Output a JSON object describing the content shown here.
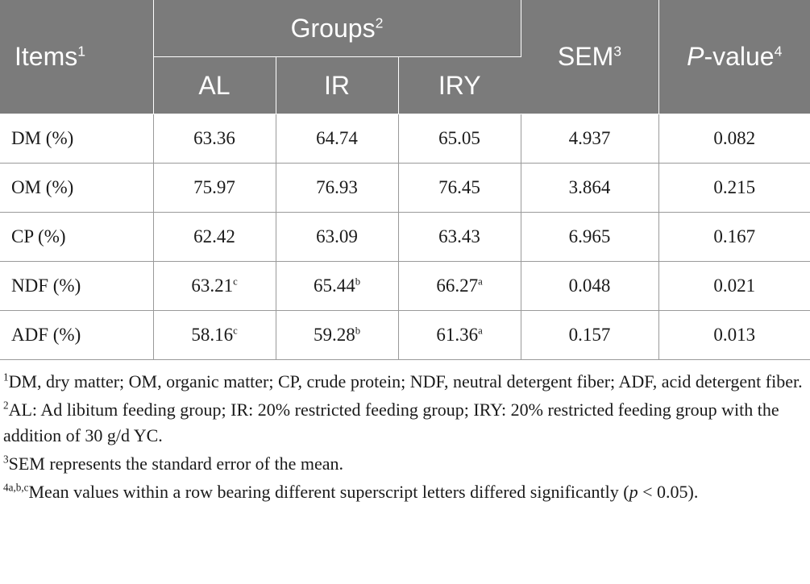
{
  "header": {
    "items": "Items",
    "items_sup": "1",
    "groups": "Groups",
    "groups_sup": "2",
    "sem": "SEM",
    "sem_sup": "3",
    "p_italic": "P",
    "p_rest": "-value",
    "p_sup": "4",
    "sub_al": "AL",
    "sub_ir": "IR",
    "sub_iry": "IRY"
  },
  "rows": [
    {
      "item": "DM (%)",
      "al": "63.36",
      "al_sup": "",
      "ir": "64.74",
      "ir_sup": "",
      "iry": "65.05",
      "iry_sup": "",
      "sem": "4.937",
      "p": "0.082"
    },
    {
      "item": "OM (%)",
      "al": "75.97",
      "al_sup": "",
      "ir": "76.93",
      "ir_sup": "",
      "iry": "76.45",
      "iry_sup": "",
      "sem": "3.864",
      "p": "0.215"
    },
    {
      "item": "CP (%)",
      "al": "62.42",
      "al_sup": "",
      "ir": "63.09",
      "ir_sup": "",
      "iry": "63.43",
      "iry_sup": "",
      "sem": "6.965",
      "p": "0.167"
    },
    {
      "item": "NDF (%)",
      "al": "63.21",
      "al_sup": "c",
      "ir": "65.44",
      "ir_sup": "b",
      "iry": "66.27",
      "iry_sup": "a",
      "sem": "0.048",
      "p": "0.021"
    },
    {
      "item": "ADF (%)",
      "al": "58.16",
      "al_sup": "c",
      "ir": "59.28",
      "ir_sup": "b",
      "iry": "61.36",
      "iry_sup": "a",
      "sem": "0.157",
      "p": "0.013"
    }
  ],
  "footnotes": {
    "n1_sup": "1",
    "n1_text": "DM, dry matter; OM, organic matter; CP, crude protein; NDF, neutral detergent fiber; ADF, acid detergent fiber.",
    "n2_sup": "2",
    "n2_text": "AL: Ad libitum feeding group; IR: 20% restricted feeding group; IRY: 20% restricted feeding group with the addition of 30 g/d YC.",
    "n3_sup": "3",
    "n3_text": "SEM represents the standard error of the mean.",
    "n4_sup": "4a,b,c",
    "n4_text_a": "Mean values within a row bearing different superscript letters differed significantly (",
    "n4_p": "p",
    "n4_text_b": " < 0.05)."
  }
}
